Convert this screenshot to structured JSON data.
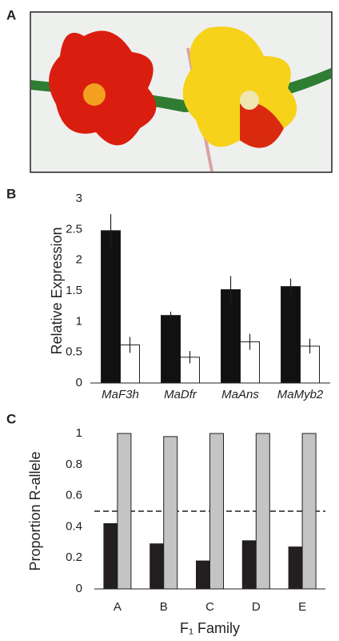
{
  "panel_labels": [
    "A",
    "B",
    "C"
  ],
  "chart_data": [
    {
      "type": "bar",
      "ylabel": "Relative Expression",
      "categories": [
        "MaF3h",
        "MaDfr",
        "MaAns",
        "MaMyb2"
      ],
      "series": [
        {
          "color": "#111111",
          "values": [
            2.48,
            1.1,
            1.52,
            1.57
          ],
          "errors": [
            0.27,
            0.06,
            0.22,
            0.13
          ]
        },
        {
          "color": "#ffffff",
          "values": [
            0.62,
            0.42,
            0.67,
            0.6
          ],
          "errors": [
            0.13,
            0.1,
            0.13,
            0.12
          ]
        }
      ],
      "ylim": [
        0,
        3
      ],
      "yticks": [
        0,
        0.5,
        1,
        1.5,
        2,
        2.5,
        3
      ]
    },
    {
      "type": "bar",
      "ylabel": "Proportion R-allele",
      "xlabel": "F₁ Family",
      "categories": [
        "A",
        "B",
        "C",
        "D",
        "E"
      ],
      "series": [
        {
          "color": "#231f20",
          "values": [
            0.42,
            0.29,
            0.18,
            0.31,
            0.27
          ]
        },
        {
          "color": "#c4c4c4",
          "values": [
            1,
            0.98,
            1,
            1,
            1
          ]
        }
      ],
      "reference_line": 0.5,
      "ylim": [
        0,
        1
      ],
      "yticks": [
        0,
        0.2,
        0.4,
        0.6,
        0.8,
        1
      ]
    }
  ]
}
